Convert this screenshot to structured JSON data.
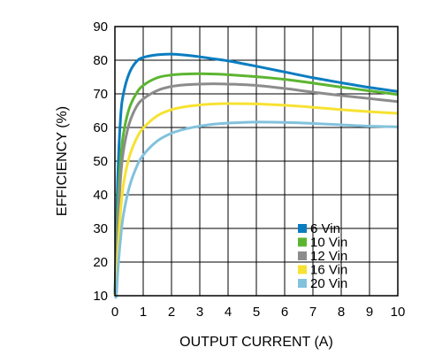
{
  "chart_data": {
    "type": "line",
    "title": "",
    "xlabel": "OUTPUT CURRENT (A)",
    "ylabel": "EFFICIENCY (%)",
    "xlim": [
      0,
      10
    ],
    "ylim": [
      10,
      90
    ],
    "x_ticks": [
      "0",
      "1",
      "2",
      "3",
      "4",
      "5",
      "6",
      "7",
      "8",
      "9",
      "10"
    ],
    "y_ticks": [
      "10",
      "20",
      "30",
      "40",
      "50",
      "60",
      "70",
      "80",
      "90"
    ],
    "grid": true,
    "legend_position": "bottom-right",
    "x": [
      0.05,
      0.1,
      0.2,
      0.3,
      0.5,
      0.75,
      1,
      1.5,
      2,
      2.5,
      3,
      3.5,
      4,
      5,
      6,
      7,
      8,
      9,
      10
    ],
    "series": [
      {
        "name": "6 Vin",
        "color": "#0a7dc0",
        "values": [
          27,
          45,
          63,
          70,
          76,
          79.5,
          80.8,
          81.6,
          81.8,
          81.5,
          81,
          80.4,
          79.8,
          78.2,
          76.5,
          74.8,
          73.3,
          71.9,
          70.7
        ]
      },
      {
        "name": "10 Vin",
        "color": "#5cb531",
        "values": [
          20,
          35,
          50,
          58,
          65.5,
          70,
          72.5,
          74.8,
          75.6,
          75.9,
          76,
          75.9,
          75.7,
          75.1,
          74.3,
          73.2,
          72,
          70.9,
          69.8
        ]
      },
      {
        "name": "12 Vin",
        "color": "#8c8c8c",
        "values": [
          17,
          30,
          45,
          53,
          61,
          66,
          68.5,
          71,
          72.2,
          72.7,
          72.9,
          73,
          72.9,
          72.5,
          71.6,
          70.5,
          69.5,
          68.6,
          67.7
        ]
      },
      {
        "name": "16 Vin",
        "color": "#f7e233",
        "values": [
          13,
          22,
          35,
          43,
          51,
          56.5,
          59.8,
          63.5,
          65.3,
          66.2,
          66.7,
          67,
          67.1,
          67,
          66.6,
          66,
          65.3,
          64.7,
          64.2
        ]
      },
      {
        "name": "20 Vin",
        "color": "#82c2dc",
        "values": [
          10,
          17,
          27,
          34,
          42,
          48,
          51.8,
          56,
          58.3,
          59.6,
          60.4,
          61,
          61.3,
          61.6,
          61.5,
          61.2,
          60.8,
          60.4,
          60.2
        ]
      }
    ]
  }
}
